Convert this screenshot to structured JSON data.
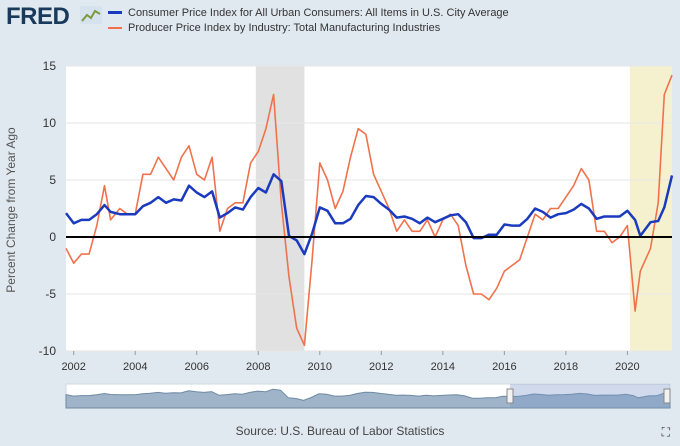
{
  "header": {
    "logo": "FRED"
  },
  "legend": [
    {
      "label": "Consumer Price Index for All Urban Consumers: All Items in U.S. City Average",
      "color": "#1b3bbf"
    },
    {
      "label": "Producer Price Index by Industry: Total Manufacturing Industries",
      "color": "#f0724d"
    }
  ],
  "source": "Source: U.S. Bureau of Labor Statistics",
  "icons": {
    "logo_mark": "line-chart-icon",
    "fullscreen": "fullscreen-icon"
  },
  "chart_data": {
    "type": "line",
    "ylabel": "Percent Change from Year Ago",
    "xlabel": "",
    "xlim": [
      2001.75,
      2021.45
    ],
    "ylim": [
      -10,
      15
    ],
    "yticks": [
      -10,
      -5,
      0,
      5,
      10,
      15
    ],
    "xticks": [
      2002,
      2004,
      2006,
      2008,
      2010,
      2012,
      2014,
      2016,
      2018,
      2020
    ],
    "recessions": [
      [
        2007.92,
        2009.5
      ],
      [
        2020.08,
        2021.45
      ]
    ],
    "grid": true,
    "series": [
      {
        "name": "Consumer Price Index for All Urban Consumers: All Items in U.S. City Average",
        "color": "#1b3bbf",
        "x": [
          2001.75,
          2002.0,
          2002.25,
          2002.5,
          2002.75,
          2003.0,
          2003.2,
          2003.5,
          2003.75,
          2004.0,
          2004.25,
          2004.5,
          2004.75,
          2005.0,
          2005.25,
          2005.5,
          2005.75,
          2006.0,
          2006.25,
          2006.5,
          2006.75,
          2007.0,
          2007.25,
          2007.5,
          2007.75,
          2008.0,
          2008.25,
          2008.5,
          2008.75,
          2009.0,
          2009.25,
          2009.5,
          2009.75,
          2010.0,
          2010.25,
          2010.5,
          2010.75,
          2011.0,
          2011.25,
          2011.5,
          2011.75,
          2012.0,
          2012.25,
          2012.5,
          2012.75,
          2013.0,
          2013.25,
          2013.5,
          2013.75,
          2014.0,
          2014.25,
          2014.5,
          2014.75,
          2015.0,
          2015.25,
          2015.5,
          2015.75,
          2016.0,
          2016.25,
          2016.5,
          2016.75,
          2017.0,
          2017.25,
          2017.5,
          2017.75,
          2018.0,
          2018.25,
          2018.5,
          2018.75,
          2019.0,
          2019.25,
          2019.5,
          2019.75,
          2020.0,
          2020.25,
          2020.42,
          2020.75,
          2021.0,
          2021.2,
          2021.45
        ],
        "values": [
          2.1,
          1.2,
          1.5,
          1.5,
          2.0,
          2.8,
          2.2,
          2.0,
          2.0,
          2.0,
          2.7,
          3.0,
          3.5,
          3.0,
          3.3,
          3.2,
          4.5,
          3.9,
          3.5,
          4.0,
          1.7,
          2.1,
          2.6,
          2.4,
          3.5,
          4.3,
          3.9,
          5.5,
          4.9,
          0.1,
          -0.3,
          -1.5,
          0.3,
          2.6,
          2.3,
          1.2,
          1.2,
          1.6,
          2.8,
          3.6,
          3.5,
          2.9,
          2.4,
          1.7,
          1.8,
          1.6,
          1.2,
          1.7,
          1.3,
          1.6,
          1.9,
          2.0,
          1.3,
          -0.1,
          -0.1,
          0.2,
          0.2,
          1.1,
          1.0,
          1.0,
          1.6,
          2.5,
          2.2,
          1.7,
          2.0,
          2.1,
          2.4,
          2.9,
          2.5,
          1.6,
          1.8,
          1.8,
          1.8,
          2.3,
          1.5,
          0.1,
          1.3,
          1.4,
          2.6,
          5.4
        ]
      },
      {
        "name": "Producer Price Index by Industry: Total Manufacturing Industries",
        "color": "#f0724d",
        "x": [
          2001.75,
          2002.0,
          2002.25,
          2002.5,
          2002.75,
          2003.0,
          2003.2,
          2003.5,
          2003.75,
          2004.0,
          2004.25,
          2004.5,
          2004.75,
          2005.0,
          2005.25,
          2005.5,
          2005.75,
          2006.0,
          2006.25,
          2006.5,
          2006.75,
          2007.0,
          2007.25,
          2007.5,
          2007.75,
          2008.0,
          2008.25,
          2008.5,
          2008.75,
          2009.0,
          2009.25,
          2009.5,
          2009.75,
          2010.0,
          2010.25,
          2010.5,
          2010.75,
          2011.0,
          2011.25,
          2011.5,
          2011.75,
          2012.0,
          2012.25,
          2012.5,
          2012.75,
          2013.0,
          2013.25,
          2013.5,
          2013.75,
          2014.0,
          2014.25,
          2014.5,
          2014.75,
          2015.0,
          2015.25,
          2015.5,
          2015.75,
          2016.0,
          2016.25,
          2016.5,
          2016.75,
          2017.0,
          2017.25,
          2017.5,
          2017.75,
          2018.0,
          2018.25,
          2018.5,
          2018.75,
          2019.0,
          2019.25,
          2019.5,
          2019.75,
          2020.0,
          2020.25,
          2020.42,
          2020.75,
          2021.0,
          2021.2,
          2021.45
        ],
        "values": [
          -1.0,
          -2.3,
          -1.5,
          -1.5,
          1.0,
          4.5,
          1.5,
          2.5,
          2.0,
          2.0,
          5.5,
          5.5,
          7.0,
          6.0,
          5.0,
          7.0,
          8.0,
          5.5,
          5.0,
          7.0,
          0.5,
          2.5,
          3.0,
          3.0,
          6.5,
          7.5,
          9.5,
          12.5,
          3.0,
          -3.5,
          -8.0,
          -9.5,
          -2.0,
          6.5,
          5.0,
          2.5,
          4.0,
          7.0,
          9.5,
          9.0,
          5.5,
          4.0,
          2.5,
          0.5,
          1.5,
          0.5,
          0.5,
          1.5,
          0.0,
          1.5,
          2.0,
          1.0,
          -2.5,
          -5.0,
          -5.0,
          -5.5,
          -4.5,
          -3.0,
          -2.5,
          -2.0,
          0.0,
          2.0,
          1.5,
          2.5,
          2.5,
          3.5,
          4.5,
          6.0,
          5.0,
          0.5,
          0.5,
          -0.5,
          0.0,
          1.0,
          -6.5,
          -3.0,
          -1.0,
          3.0,
          12.5,
          14.2
        ]
      }
    ]
  }
}
